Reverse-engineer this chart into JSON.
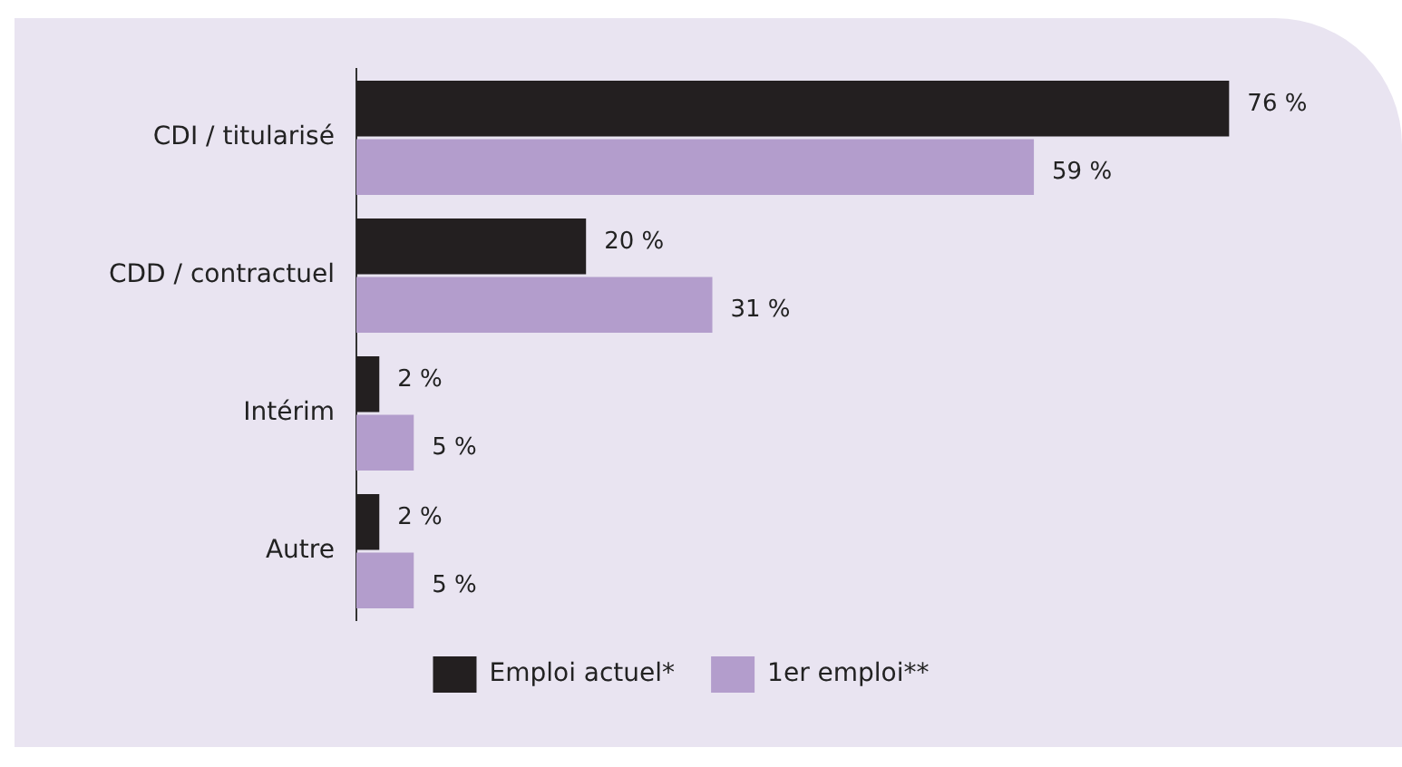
{
  "chart_data": {
    "type": "bar",
    "orientation": "horizontal",
    "categories": [
      "CDI / titularisé",
      "CDD / contractuel",
      "Intérim",
      "Autre"
    ],
    "series": [
      {
        "name": "Emploi actuel*",
        "color": "#231f20",
        "values": [
          76,
          20,
          2,
          2
        ],
        "value_labels": [
          "76 %",
          "20 %",
          "2 %",
          "2 %"
        ]
      },
      {
        "name": "1er emploi**",
        "color": "#b39dcc",
        "values": [
          59,
          31,
          5,
          5
        ],
        "value_labels": [
          "59 %",
          "31 %",
          "5 %",
          "5 %"
        ]
      }
    ],
    "grid": false,
    "legend": "bottom"
  }
}
